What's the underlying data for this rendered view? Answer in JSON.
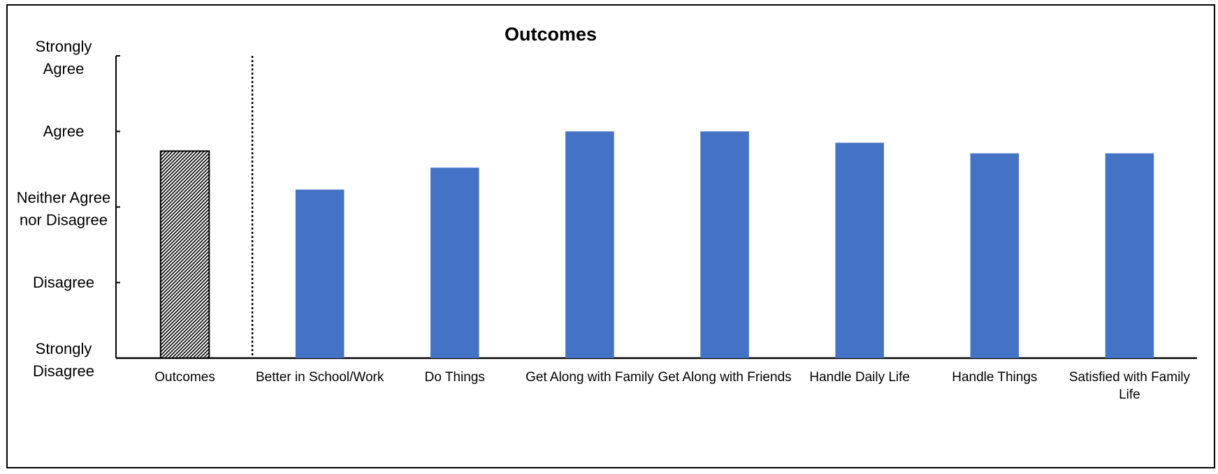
{
  "chart_data": {
    "type": "bar",
    "title": "Outcomes",
    "xlabel": "",
    "ylabel": "",
    "y_tick_labels": [
      "Strongly Disagree",
      "Disagree",
      "Neither Agree nor Disagree",
      "Agree",
      "Strongly Agree"
    ],
    "ylim": [
      1,
      5
    ],
    "categories": [
      "Outcomes",
      "Better in School/Work",
      "Do Things",
      "Get Along with Family",
      "Get Along with Friends",
      "Handle Daily Life",
      "Handle Things",
      "Satisfied with Family Life"
    ],
    "values": [
      3.74,
      3.23,
      3.52,
      4.0,
      4.0,
      3.85,
      3.71,
      3.71
    ],
    "bar_styles": [
      "hatched",
      "solid",
      "solid",
      "solid",
      "solid",
      "solid",
      "solid",
      "solid"
    ],
    "colors": {
      "bar": "#4472C4",
      "hatch_bar_fill": "#000000",
      "axis": "#000000"
    },
    "grid": false,
    "legend": "none",
    "separator_after_category": "Outcomes"
  }
}
